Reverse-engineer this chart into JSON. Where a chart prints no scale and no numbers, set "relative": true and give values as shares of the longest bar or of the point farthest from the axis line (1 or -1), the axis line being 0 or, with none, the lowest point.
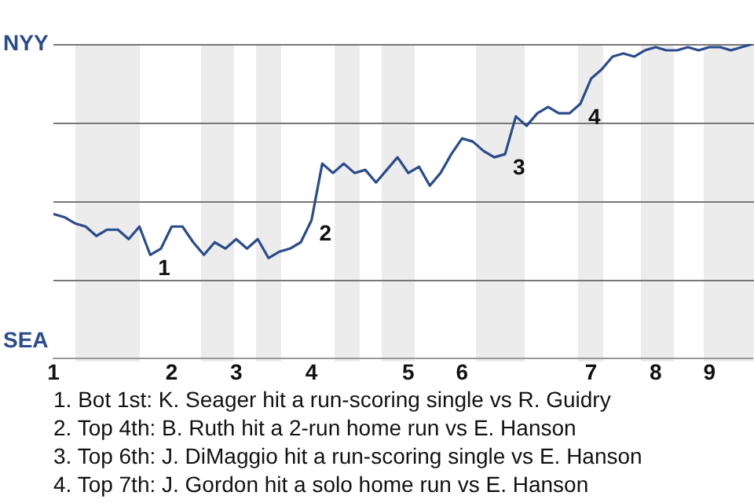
{
  "chart_data": {
    "type": "line",
    "relative": true,
    "categories": [
      "1",
      null,
      null,
      null,
      null,
      null,
      null,
      null,
      null,
      null,
      null,
      "2",
      null,
      null,
      null,
      null,
      null,
      "3",
      null,
      null,
      null,
      null,
      null,
      null,
      "4",
      null,
      null,
      null,
      null,
      null,
      null,
      null,
      null,
      "5",
      null,
      null,
      null,
      null,
      "6",
      null,
      null,
      null,
      null,
      null,
      null,
      null,
      null,
      null,
      null,
      null,
      "7",
      null,
      null,
      null,
      null,
      null,
      "8",
      null,
      null,
      null,
      null,
      "9",
      null,
      null,
      null,
      null
    ],
    "series": [
      {
        "color": "#2a4b8d",
        "values": [
          0.46,
          0.45,
          0.43,
          0.42,
          0.39,
          0.41,
          0.41,
          0.38,
          0.42,
          0.33,
          0.35,
          0.42,
          0.42,
          0.37,
          0.33,
          0.37,
          0.35,
          0.38,
          0.35,
          0.38,
          0.32,
          0.34,
          0.35,
          0.37,
          0.44,
          0.62,
          0.59,
          0.62,
          0.59,
          0.6,
          0.56,
          0.6,
          0.64,
          0.59,
          0.61,
          0.55,
          0.59,
          0.65,
          0.7,
          0.69,
          0.66,
          0.64,
          0.65,
          0.77,
          0.74,
          0.78,
          0.8,
          0.78,
          0.78,
          0.81,
          0.89,
          0.92,
          0.96,
          0.97,
          0.96,
          0.98,
          0.99,
          0.98,
          0.98,
          0.99,
          0.98,
          0.99,
          0.99,
          0.98,
          0.99,
          1
        ]
      }
    ],
    "grid": "y",
    "legend": false,
    "marker": "none",
    "line_style": "solid",
    "annotations": [
      "1",
      "2",
      "3",
      "4",
      "NYY",
      "SEA",
      "1. Bot 1st: K. Seager hit a run-scoring single vs R. Guidry",
      "2. Top 4th: B. Ruth hit a 2-run home run vs E. Hanson",
      "3. Top 6th: J. DiMaggio hit a run-scoring single vs E. Hanson",
      "4. Top 7th: J. Gordon hit a solo home run vs E. Hanson"
    ]
  }
}
